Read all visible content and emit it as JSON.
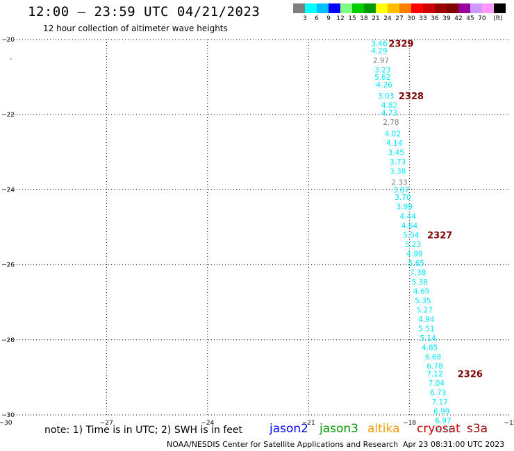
{
  "header": {
    "title": "12:00 – 23:59 UTC 04/21/2023",
    "subtitle": "12 hour collection of altimeter wave heights"
  },
  "colorbar": {
    "colors": [
      "#7f7f7f",
      "#00ffff",
      "#00bfff",
      "#0000ff",
      "#7fff7f",
      "#00cc00",
      "#009900",
      "#ffff00",
      "#ffbf00",
      "#ff7f00",
      "#ff0000",
      "#cc0000",
      "#990000",
      "#7f0000",
      "#990099",
      "#cc99ff",
      "#ff99ff",
      "#000000"
    ],
    "labels": [
      "3",
      "6",
      "9",
      "12",
      "15",
      "18",
      "21",
      "24",
      "27",
      "30",
      "33",
      "36",
      "39",
      "42",
      "45",
      "70",
      "(ft)"
    ]
  },
  "footer": {
    "note": "note: 1) Time is in UTC; 2) SWH is in feet",
    "credit": "NOAA/NESDIS Center for Satellite Applications and Research",
    "timestamp": "Apr 23 08:31:00 UTC 2023"
  },
  "satellites": [
    {
      "name": "jason2",
      "color": "#0000ff"
    },
    {
      "name": "jason3",
      "color": "#009900"
    },
    {
      "name": "altika",
      "color": "#ff9900"
    },
    {
      "name": "cryosat",
      "color": "#cc0000"
    },
    {
      "name": "s3a",
      "color": "#990000"
    }
  ],
  "chart_data": {
    "type": "scatter",
    "xlim": [
      -30,
      -15
    ],
    "ylim": [
      -30,
      -20
    ],
    "x_ticks": [
      -30,
      -27,
      -24,
      -21,
      -18,
      -15
    ],
    "y_ticks": [
      -20,
      -22,
      -24,
      -26,
      -28,
      -30
    ],
    "grid": true,
    "swh_points": [
      {
        "lon": -18.9,
        "lat": -20.1,
        "swh": "3.46",
        "color": "#00e5ff"
      },
      {
        "lon": -18.9,
        "lat": -20.3,
        "swh": "4.29",
        "color": "#00e5ff"
      },
      {
        "lon": -18.85,
        "lat": -20.55,
        "swh": "2.97",
        "color": "#7f7f7f"
      },
      {
        "lon": -18.8,
        "lat": -20.8,
        "swh": "3.23",
        "color": "#00e5ff"
      },
      {
        "lon": -18.8,
        "lat": -21.0,
        "swh": "5.62",
        "color": "#00e5ff"
      },
      {
        "lon": -18.75,
        "lat": -21.2,
        "swh": "4.26",
        "color": "#00e5ff"
      },
      {
        "lon": -18.7,
        "lat": -21.5,
        "swh": "3.03",
        "color": "#00e5ff"
      },
      {
        "lon": -18.6,
        "lat": -21.75,
        "swh": "4.82",
        "color": "#00e5ff"
      },
      {
        "lon": -18.6,
        "lat": -21.95,
        "swh": "4.73",
        "color": "#00e5ff"
      },
      {
        "lon": -18.55,
        "lat": -22.2,
        "swh": "2.78",
        "color": "#7f7f7f"
      },
      {
        "lon": -18.5,
        "lat": -22.5,
        "swh": "4.02",
        "color": "#00e5ff"
      },
      {
        "lon": -18.45,
        "lat": -22.75,
        "swh": "4.14",
        "color": "#00e5ff"
      },
      {
        "lon": -18.4,
        "lat": -23.0,
        "swh": "3.45",
        "color": "#00e5ff"
      },
      {
        "lon": -18.35,
        "lat": -23.25,
        "swh": "3.73",
        "color": "#00e5ff"
      },
      {
        "lon": -18.35,
        "lat": -23.5,
        "swh": "3.38",
        "color": "#00e5ff"
      },
      {
        "lon": -18.3,
        "lat": -23.8,
        "swh": "2.33",
        "color": "#7f7f7f"
      },
      {
        "lon": -18.25,
        "lat": -24.0,
        "swh": "3.87",
        "color": "#00e5ff"
      },
      {
        "lon": -18.2,
        "lat": -24.2,
        "swh": "3.70",
        "color": "#00e5ff"
      },
      {
        "lon": -18.15,
        "lat": -24.45,
        "swh": "3.99",
        "color": "#00e5ff"
      },
      {
        "lon": -18.05,
        "lat": -24.7,
        "swh": "4.44",
        "color": "#00e5ff"
      },
      {
        "lon": -18.0,
        "lat": -24.95,
        "swh": "4.64",
        "color": "#00e5ff"
      },
      {
        "lon": -17.95,
        "lat": -25.2,
        "swh": "5.54",
        "color": "#00e5ff"
      },
      {
        "lon": -17.9,
        "lat": -25.45,
        "swh": "5.23",
        "color": "#00e5ff"
      },
      {
        "lon": -17.85,
        "lat": -25.7,
        "swh": "4.99",
        "color": "#00e5ff"
      },
      {
        "lon": -17.8,
        "lat": -25.95,
        "swh": "5.65",
        "color": "#00e5ff"
      },
      {
        "lon": -17.75,
        "lat": -26.2,
        "swh": "7.38",
        "color": "#00e5ff"
      },
      {
        "lon": -17.7,
        "lat": -26.45,
        "swh": "5.38",
        "color": "#00e5ff"
      },
      {
        "lon": -17.65,
        "lat": -26.7,
        "swh": "4.69",
        "color": "#00e5ff"
      },
      {
        "lon": -17.6,
        "lat": -26.95,
        "swh": "5.35",
        "color": "#00e5ff"
      },
      {
        "lon": -17.55,
        "lat": -27.2,
        "swh": "5.27",
        "color": "#00e5ff"
      },
      {
        "lon": -17.5,
        "lat": -27.45,
        "swh": "4.94",
        "color": "#00e5ff"
      },
      {
        "lon": -17.5,
        "lat": -27.7,
        "swh": "5.51",
        "color": "#00e5ff"
      },
      {
        "lon": -17.45,
        "lat": -27.95,
        "swh": "5.14",
        "color": "#00e5ff"
      },
      {
        "lon": -17.4,
        "lat": -28.2,
        "swh": "4.85",
        "color": "#00e5ff"
      },
      {
        "lon": -17.3,
        "lat": -28.45,
        "swh": "6.68",
        "color": "#00e5ff"
      },
      {
        "lon": -17.25,
        "lat": -28.7,
        "swh": "6.78",
        "color": "#00e5ff"
      },
      {
        "lon": -17.25,
        "lat": -28.9,
        "swh": "7.12",
        "color": "#00e5ff"
      },
      {
        "lon": -17.2,
        "lat": -29.15,
        "swh": "7.04",
        "color": "#00e5ff"
      },
      {
        "lon": -17.15,
        "lat": -29.4,
        "swh": "6.73",
        "color": "#00e5ff"
      },
      {
        "lon": -17.1,
        "lat": -29.65,
        "swh": "7.17",
        "color": "#00e5ff"
      },
      {
        "lon": -17.05,
        "lat": -29.9,
        "swh": "6.99",
        "color": "#00e5ff"
      },
      {
        "lon": -17.0,
        "lat": -30.15,
        "swh": "6.97",
        "color": "#00e5ff"
      },
      {
        "lon": -16.95,
        "lat": -30.4,
        "swh": "6.65",
        "color": "#00e5ff"
      }
    ],
    "time_labels": [
      {
        "lon": -18.25,
        "lat": -20.1,
        "text": "2329",
        "color": "#7f0000"
      },
      {
        "lon": -17.95,
        "lat": -21.5,
        "text": "2328",
        "color": "#7f0000"
      },
      {
        "lon": -17.1,
        "lat": -25.2,
        "text": "2327",
        "color": "#7f0000"
      },
      {
        "lon": -16.2,
        "lat": -28.9,
        "text": "2326",
        "color": "#7f0000"
      }
    ]
  }
}
